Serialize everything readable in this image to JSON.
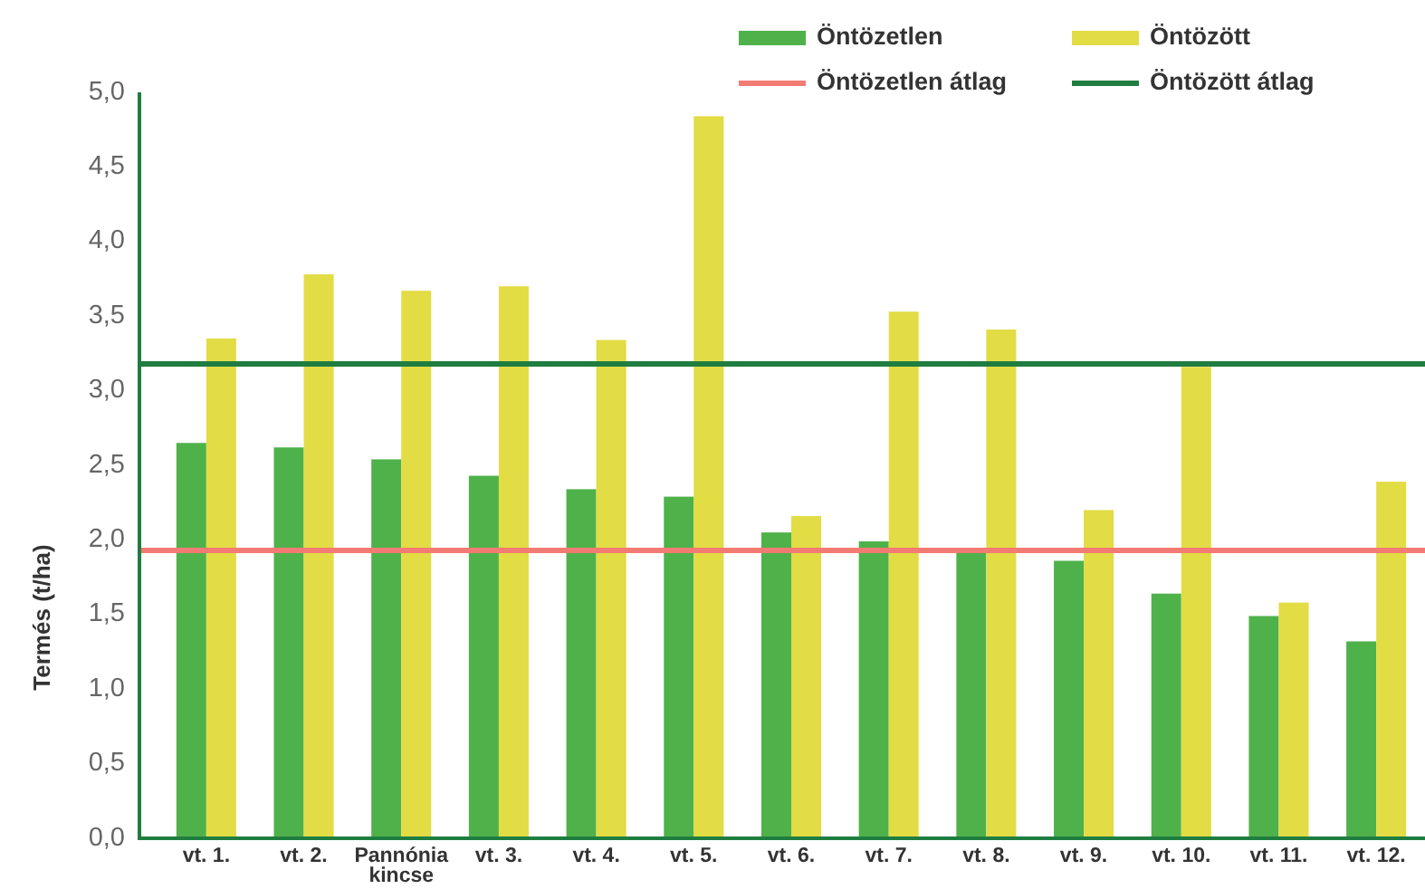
{
  "chart_data": {
    "type": "bar",
    "ylabel": "Termés (t/ha)",
    "categories": [
      "vt. 1.",
      "vt. 2.",
      "Pannónia kincse",
      "vt. 3.",
      "vt. 4.",
      "vt. 5.",
      "vt. 6.",
      "vt. 7.",
      "vt. 8.",
      "vt. 9.",
      "vt. 10.",
      "vt. 11.",
      "vt. 12."
    ],
    "series": [
      {
        "name": "Öntözetlen",
        "color": "#4fb14a",
        "values": [
          2.65,
          2.62,
          2.54,
          2.43,
          2.34,
          2.29,
          2.05,
          1.99,
          1.92,
          1.86,
          1.64,
          1.49,
          1.32
        ]
      },
      {
        "name": "Öntözött",
        "color": "#e2dc45",
        "values": [
          3.35,
          3.78,
          3.67,
          3.7,
          3.34,
          4.84,
          2.16,
          3.53,
          3.41,
          2.2,
          3.16,
          1.58,
          2.39
        ]
      }
    ],
    "ylim": [
      0,
      5
    ],
    "yticks": [
      {
        "value": 0,
        "label": "0,0"
      },
      {
        "value": 0.5,
        "label": "0,5"
      },
      {
        "value": 1,
        "label": "1,0"
      },
      {
        "value": 1.5,
        "label": "1,5"
      },
      {
        "value": 2,
        "label": "2,0"
      },
      {
        "value": 2.5,
        "label": "2,5"
      },
      {
        "value": 3,
        "label": "3,0"
      },
      {
        "value": 3.5,
        "label": "3,5"
      },
      {
        "value": 4,
        "label": "4,0"
      },
      {
        "value": 4.5,
        "label": "4,5"
      },
      {
        "value": 5,
        "label": "5,0"
      }
    ],
    "ref_lines": [
      {
        "axis": "y",
        "value": 1.93,
        "label": "Öntözetlen átlag",
        "color": "#f27b73"
      },
      {
        "axis": "y",
        "value": 3.18,
        "label": "Öntözött átlag",
        "color": "#1f7d40"
      }
    ],
    "legend": "top right"
  }
}
